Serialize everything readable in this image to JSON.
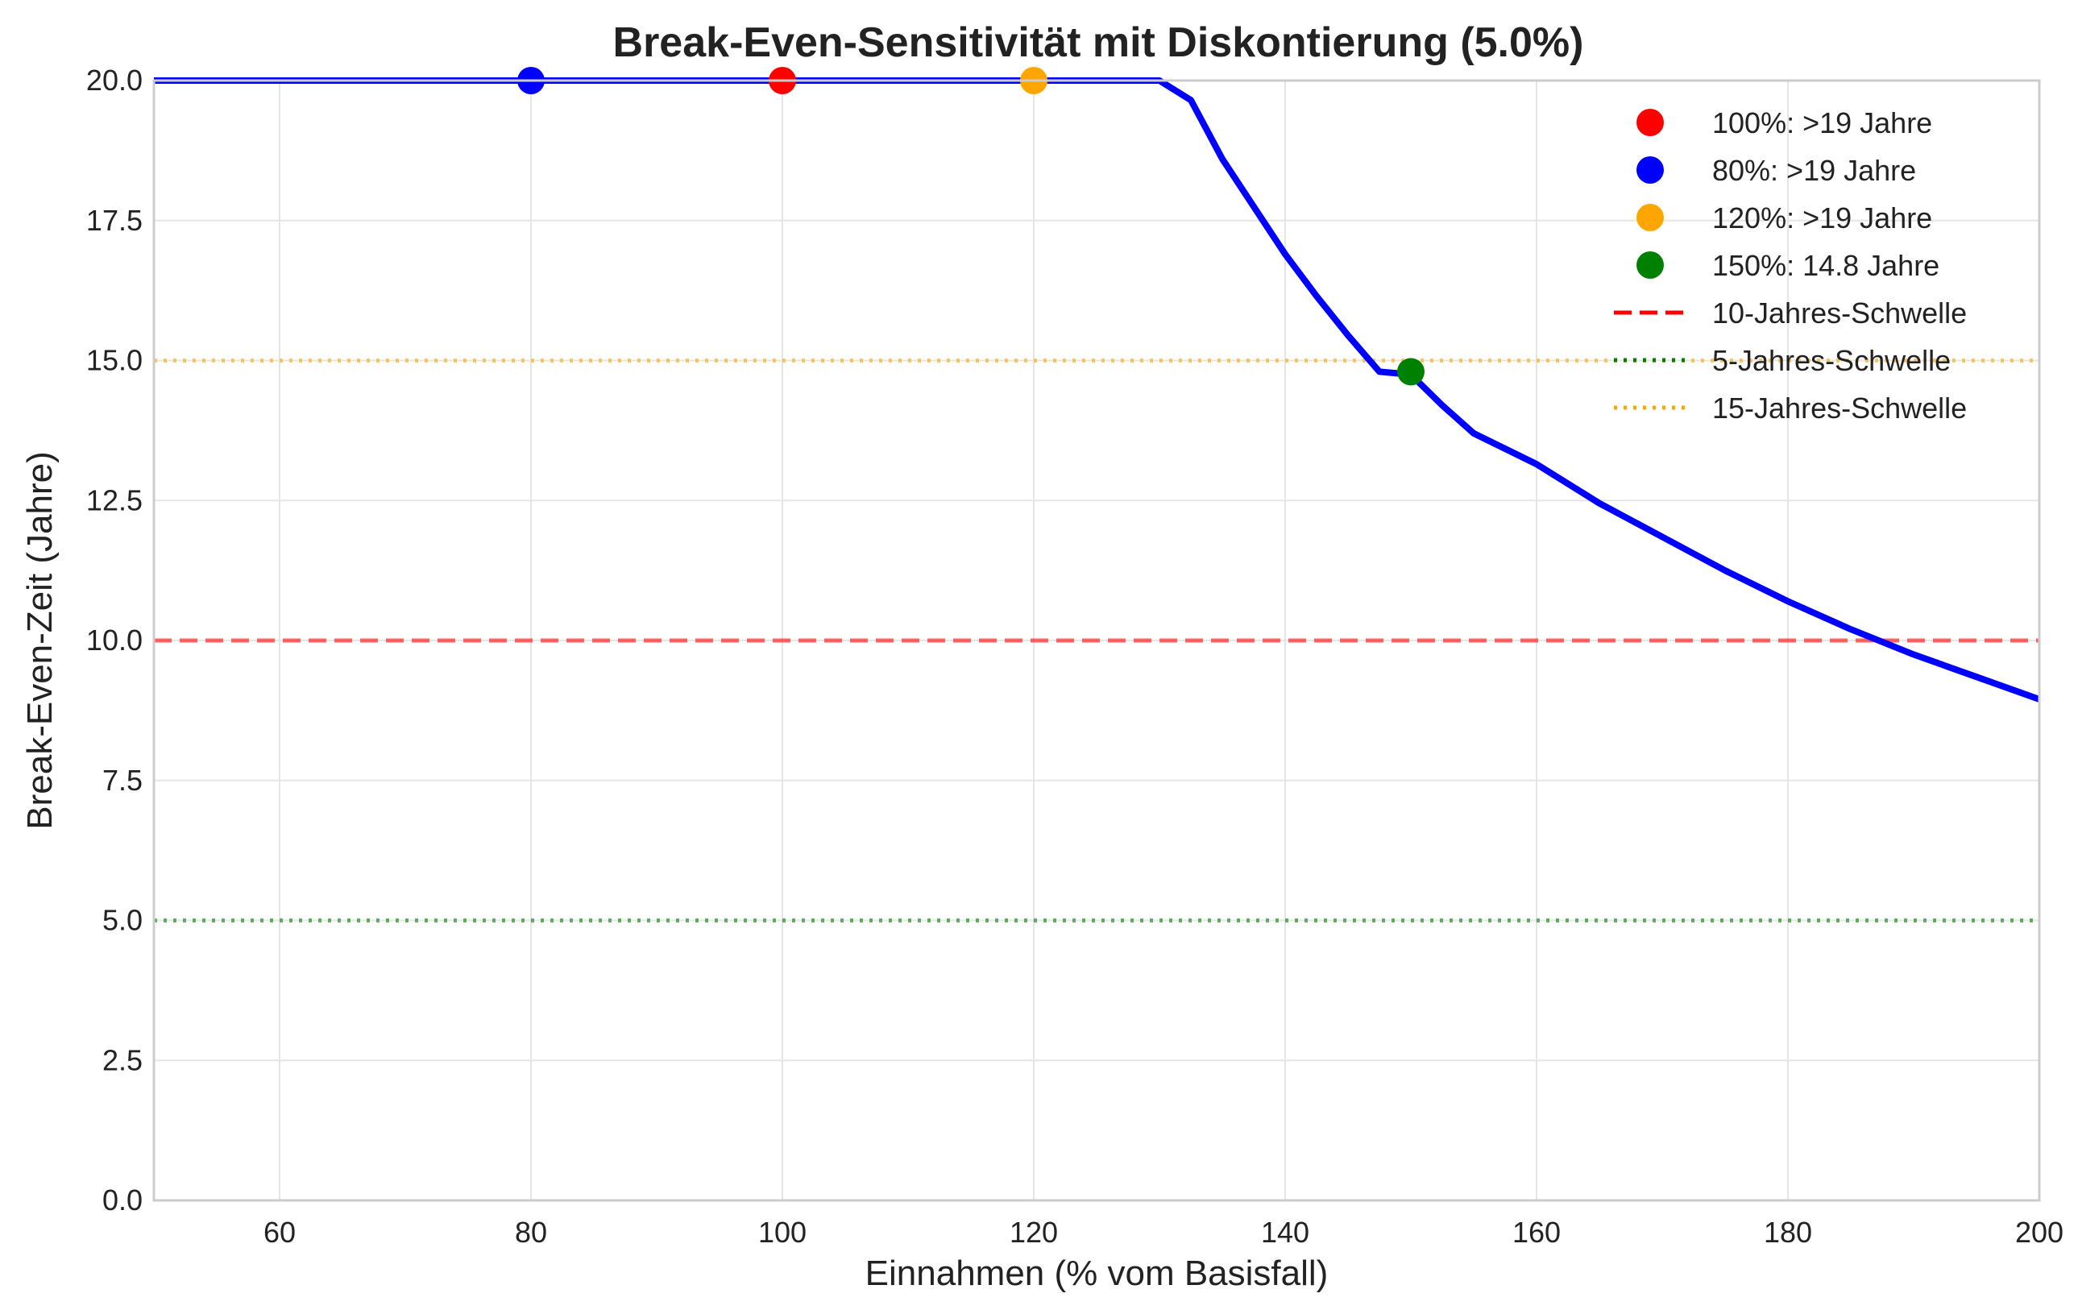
{
  "chart_data": {
    "type": "line",
    "title": "Break-Even-Sensitivität mit Diskontierung (5.0%)",
    "xlabel": "Einnahmen (% vom Basisfall)",
    "ylabel": "Break-Even-Zeit (Jahre)",
    "xlim": [
      50,
      200
    ],
    "ylim": [
      0,
      20
    ],
    "xticks": [
      60,
      80,
      100,
      120,
      140,
      160,
      180,
      200
    ],
    "xtick_labels": [
      "60",
      "80",
      "100",
      "120",
      "140",
      "160",
      "180",
      "200"
    ],
    "yticks": [
      0,
      2.5,
      5,
      7.5,
      10,
      12.5,
      15,
      17.5,
      20
    ],
    "ytick_labels": [
      "0.0",
      "2.5",
      "5.0",
      "7.5",
      "10.0",
      "12.5",
      "15.0",
      "17.5",
      "20.0"
    ],
    "grid": true,
    "legend_position": "top-right",
    "series": [
      {
        "color": "#0000ff",
        "x": [
          50,
          60,
          70,
          80,
          90,
          100,
          110,
          120,
          125,
          130,
          132.5,
          135,
          137.5,
          140,
          142.5,
          145,
          147.5,
          150,
          152.5,
          155,
          160,
          165,
          170,
          175,
          180,
          185,
          190,
          195,
          200
        ],
        "y": [
          20,
          20,
          20,
          20,
          20,
          20,
          20,
          20,
          20,
          20,
          19.65,
          18.6,
          17.75,
          16.9,
          16.15,
          15.45,
          14.8,
          14.75,
          14.2,
          13.7,
          13.15,
          12.45,
          11.85,
          11.25,
          10.7,
          10.2,
          9.75,
          9.35,
          8.95
        ]
      }
    ],
    "points": [
      {
        "label": "100%: >19 Jahre",
        "x": 100,
        "y": 20,
        "color": "#ff0000"
      },
      {
        "label": "80%: >19 Jahre",
        "x": 80,
        "y": 20,
        "color": "#0000ff"
      },
      {
        "label": "120%: >19 Jahre",
        "x": 120,
        "y": 20,
        "color": "#ffa500"
      },
      {
        "label": "150%: 14.8 Jahre",
        "x": 150,
        "y": 14.8,
        "color": "#008000"
      }
    ],
    "thresholds": [
      {
        "label": "10-Jahres-Schwelle",
        "y": 10,
        "color": "#ff0000",
        "style": "dashed"
      },
      {
        "label": "5-Jahres-Schwelle",
        "y": 5,
        "color": "#008000",
        "style": "dotted"
      },
      {
        "label": "15-Jahres-Schwelle",
        "y": 15,
        "color": "#ffa500",
        "style": "dotted"
      }
    ]
  }
}
